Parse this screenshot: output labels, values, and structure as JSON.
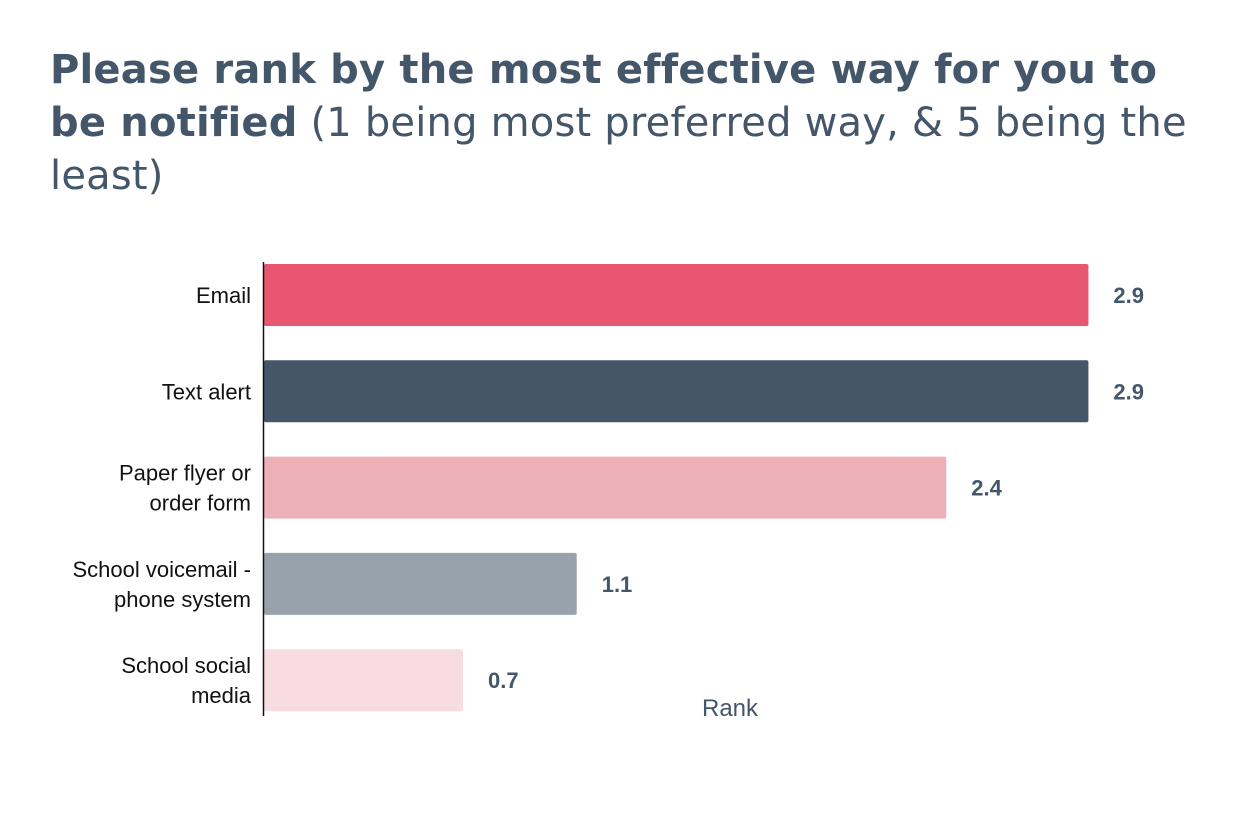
{
  "title": {
    "bold": "Please rank by the most effective way for you to be notified",
    "normal": " (1 being most preferred way, & 5 being the least)"
  },
  "chart_data": {
    "type": "bar",
    "orientation": "horizontal",
    "categories": [
      [
        "Email"
      ],
      [
        "Text alert"
      ],
      [
        "Paper flyer or",
        "order form"
      ],
      [
        "School voicemail -",
        "phone system"
      ],
      [
        "School social",
        "media"
      ]
    ],
    "values": [
      2.9,
      2.9,
      2.4,
      1.1,
      0.7
    ],
    "value_labels": [
      "2.9",
      "2.9",
      "2.4",
      "1.1",
      "0.7"
    ],
    "colors": [
      "#e9566f",
      "#445668",
      "#edb0b7",
      "#98a2ad",
      "#f7dde2"
    ],
    "xlabel": "Rank",
    "ylabel": "",
    "xlim": [
      0,
      3.5
    ],
    "grid": false,
    "legend": "none"
  }
}
